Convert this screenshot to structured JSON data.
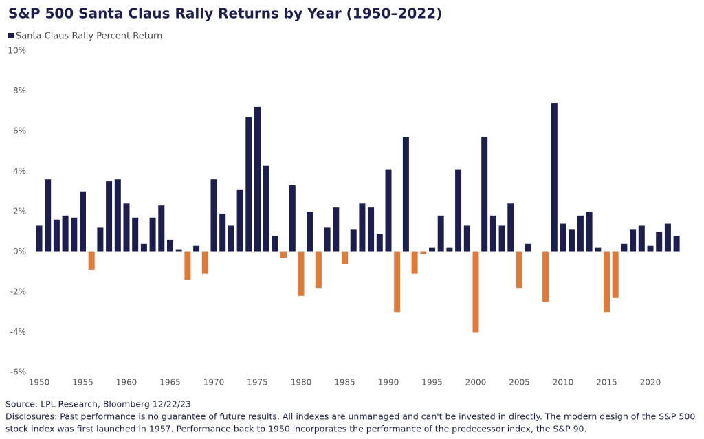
{
  "chart_data": {
    "type": "bar",
    "title": "S&P 500 Santa Claus Rally Returns by Year (1950–2022)",
    "source": "Source: LPL Research, Bloomberg 12/22/23",
    "disclosures": [
      "Disclosures: Past performance is no guarantee of future results. All indexes are unmanaged and can't be invested in directly. The modern design of the S&P 500",
      "stock index was first launched in 1957. Performance back to 1950 incorporates the performance of the predecessor index, the S&P 90."
    ],
    "x": [
      1950,
      1951,
      1952,
      1953,
      1954,
      1955,
      1956,
      1957,
      1958,
      1959,
      1960,
      1961,
      1962,
      1963,
      1964,
      1965,
      1966,
      1967,
      1968,
      1969,
      1970,
      1971,
      1972,
      1973,
      1974,
      1975,
      1976,
      1977,
      1978,
      1979,
      1980,
      1981,
      1982,
      1983,
      1984,
      1985,
      1986,
      1987,
      1988,
      1989,
      1990,
      1991,
      1992,
      1993,
      1994,
      1995,
      1996,
      1997,
      1998,
      1999,
      2000,
      2001,
      2002,
      2003,
      2004,
      2005,
      2006,
      2007,
      2008,
      2009,
      2010,
      2011,
      2012,
      2013,
      2014,
      2015,
      2016,
      2017,
      2018,
      2019,
      2020,
      2021,
      2022,
      2023
    ],
    "series": [
      {
        "name": "Santa Claus Rally Percent Return",
        "color": "#1c1f4e",
        "negative_color": "#e07a38",
        "values": [
          1.3,
          3.6,
          1.6,
          1.8,
          1.7,
          3.0,
          -0.9,
          1.2,
          3.5,
          3.6,
          2.4,
          1.7,
          0.4,
          1.7,
          2.3,
          0.6,
          0.1,
          -1.4,
          0.3,
          -1.1,
          3.6,
          1.9,
          1.3,
          3.1,
          6.7,
          7.2,
          4.3,
          0.8,
          -0.3,
          3.3,
          -2.2,
          2.0,
          -1.8,
          1.2,
          2.2,
          -0.6,
          1.1,
          2.4,
          2.2,
          0.9,
          4.1,
          -3.0,
          5.7,
          -1.1,
          -0.1,
          0.2,
          1.8,
          0.2,
          4.1,
          1.3,
          -4.0,
          5.7,
          1.8,
          1.3,
          2.4,
          -1.8,
          0.4,
          0,
          -2.5,
          7.4,
          1.4,
          1.1,
          1.8,
          2.0,
          0.2,
          -3.0,
          -2.3,
          0.4,
          1.1,
          1.3,
          0.3,
          1.0,
          1.4,
          0.8
        ]
      }
    ],
    "xlim": [
      1949,
      2024
    ],
    "xticks": [
      1950,
      1955,
      1960,
      1965,
      1970,
      1975,
      1980,
      1985,
      1990,
      1995,
      2000,
      2005,
      2010,
      2015,
      2020
    ],
    "ylim": [
      -6,
      10
    ],
    "yticks": [
      {
        "value": -6,
        "label": "-6%"
      },
      {
        "value": -4,
        "label": "-4%"
      },
      {
        "value": -2,
        "label": "-2%"
      },
      {
        "value": 0,
        "label": "0%"
      },
      {
        "value": 2,
        "label": "2%"
      },
      {
        "value": 4,
        "label": "4%"
      },
      {
        "value": 6,
        "label": "6%"
      },
      {
        "value": 8,
        "label": "8%"
      },
      {
        "value": 10,
        "label": "10%"
      }
    ],
    "grid": false
  }
}
